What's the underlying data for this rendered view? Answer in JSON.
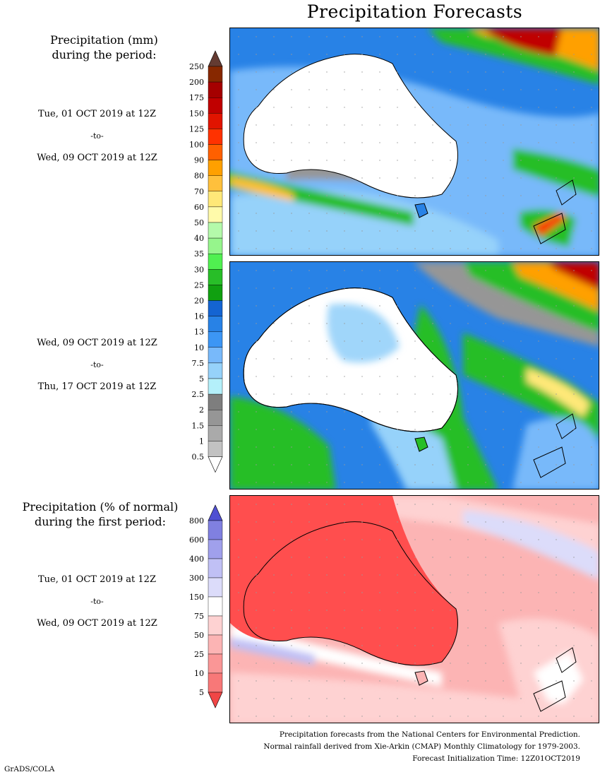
{
  "title": "Precipitation Forecasts",
  "amount_legend": {
    "title_lines": [
      "Precipitation (mm)",
      "during the period:"
    ],
    "levels": [
      "0.5",
      "1",
      "1.5",
      "2",
      "2.5",
      "5",
      "7.5",
      "10",
      "13",
      "16",
      "20",
      "25",
      "30",
      "35",
      "40",
      "50",
      "60",
      "70",
      "80",
      "90",
      "100",
      "125",
      "150",
      "175",
      "200",
      "250"
    ],
    "colors": [
      "#ffffff",
      "#c2c2c2",
      "#aaaaaa",
      "#969696",
      "#7e7e7e",
      "#b4f0fa",
      "#96d2fa",
      "#78b9fa",
      "#3c96f5",
      "#2882e6",
      "#1464d2",
      "#10a010",
      "#28be28",
      "#50f050",
      "#96f58c",
      "#b4faaa",
      "#fffaaa",
      "#ffe878",
      "#ffc03c",
      "#ffa000",
      "#ff6000",
      "#ff3200",
      "#e11400",
      "#c00000",
      "#a50000",
      "#872800",
      "#643b32"
    ]
  },
  "percent_legend": {
    "title_lines": [
      "Precipitation (% of normal)",
      "during the first period:"
    ],
    "levels": [
      "5",
      "10",
      "25",
      "50",
      "75",
      "150",
      "300",
      "400",
      "600",
      "800"
    ],
    "colors": [
      "#f04646",
      "#f87878",
      "#fa9696",
      "#fcb4b4",
      "#fed2d2",
      "#ffffff",
      "#dcdcfa",
      "#c0c0f5",
      "#a0a0ec",
      "#8080e0",
      "#5050d2"
    ]
  },
  "periods": [
    {
      "start": "Tue, 01 OCT 2019 at 12Z",
      "to": "-to-",
      "end": "Wed, 09 OCT 2019 at 12Z"
    },
    {
      "start": "Wed, 09 OCT 2019 at 12Z",
      "to": "-to-",
      "end": "Thu, 17 OCT 2019 at 12Z"
    },
    {
      "start": "Tue, 01 OCT 2019 at 12Z",
      "to": "-to-",
      "end": "Wed, 09 OCT 2019 at 12Z"
    }
  ],
  "footer": {
    "line1": "Precipitation forecasts from the National Centers for Environmental Prediction.",
    "line2": "Normal rainfall derived from Xie-Arkin (CMAP) Monthly Climatology for 1979-2003.",
    "line3": "Forecast Initialization Time: 12Z01OCT2019"
  },
  "credit": "GrADS/COLA"
}
